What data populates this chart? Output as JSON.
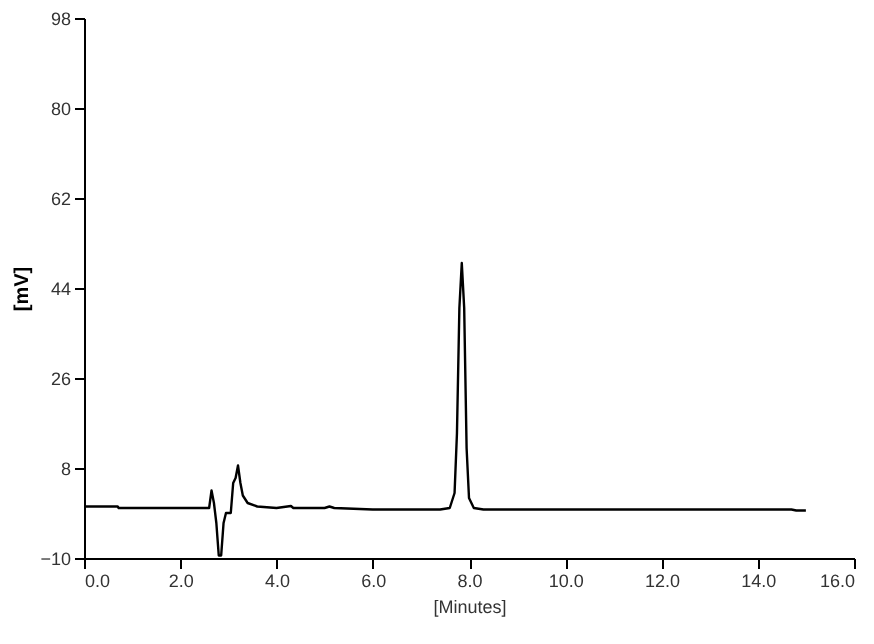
{
  "chart_data": {
    "type": "line",
    "xlabel": "[Minutes]",
    "ylabel": "[mV]",
    "x": [
      0.0,
      0.7,
      0.72,
      2.6,
      2.65,
      2.7,
      2.75,
      2.8,
      2.85,
      2.9,
      2.95,
      3.05,
      3.1,
      3.15,
      3.2,
      3.25,
      3.3,
      3.4,
      3.6,
      4.0,
      4.3,
      4.35,
      4.4,
      5.0,
      5.1,
      5.2,
      6.0,
      7.4,
      7.6,
      7.7,
      7.75,
      7.8,
      7.85,
      7.9,
      7.95,
      8.0,
      8.1,
      8.3,
      9.0,
      12.0,
      14.7,
      14.8,
      15.0
    ],
    "series": [
      {
        "color": "#000000",
        "values": [
          0.3,
          0.3,
          0,
          0,
          3.5,
          1,
          -3,
          -9.5,
          -9.5,
          -3,
          -1,
          -1,
          5,
          6,
          8.5,
          5,
          2.5,
          1,
          0.3,
          0,
          0.4,
          0,
          0,
          0,
          0.3,
          0,
          -0.3,
          -0.3,
          0,
          3,
          15,
          40,
          49,
          40,
          12,
          2,
          0,
          -0.3,
          -0.3,
          -0.3,
          -0.3,
          -0.5,
          -0.5
        ]
      }
    ],
    "xlim": [
      0,
      16
    ],
    "xticks": [
      {
        "value": 0,
        "label": "0.0"
      },
      {
        "value": 2,
        "label": "2.0"
      },
      {
        "value": 4,
        "label": "4.0"
      },
      {
        "value": 6,
        "label": "6.0"
      },
      {
        "value": 8,
        "label": "8.0"
      },
      {
        "value": 10,
        "label": "10.0"
      },
      {
        "value": 12,
        "label": "12.0"
      },
      {
        "value": 14,
        "label": "14.0"
      },
      {
        "value": 16,
        "label": "16.0"
      }
    ],
    "ylim": [
      -10,
      98
    ],
    "yticks": [
      -10,
      8,
      26,
      44,
      62,
      80,
      98
    ],
    "grid": false,
    "marker": "none",
    "line_style": "solid"
  }
}
